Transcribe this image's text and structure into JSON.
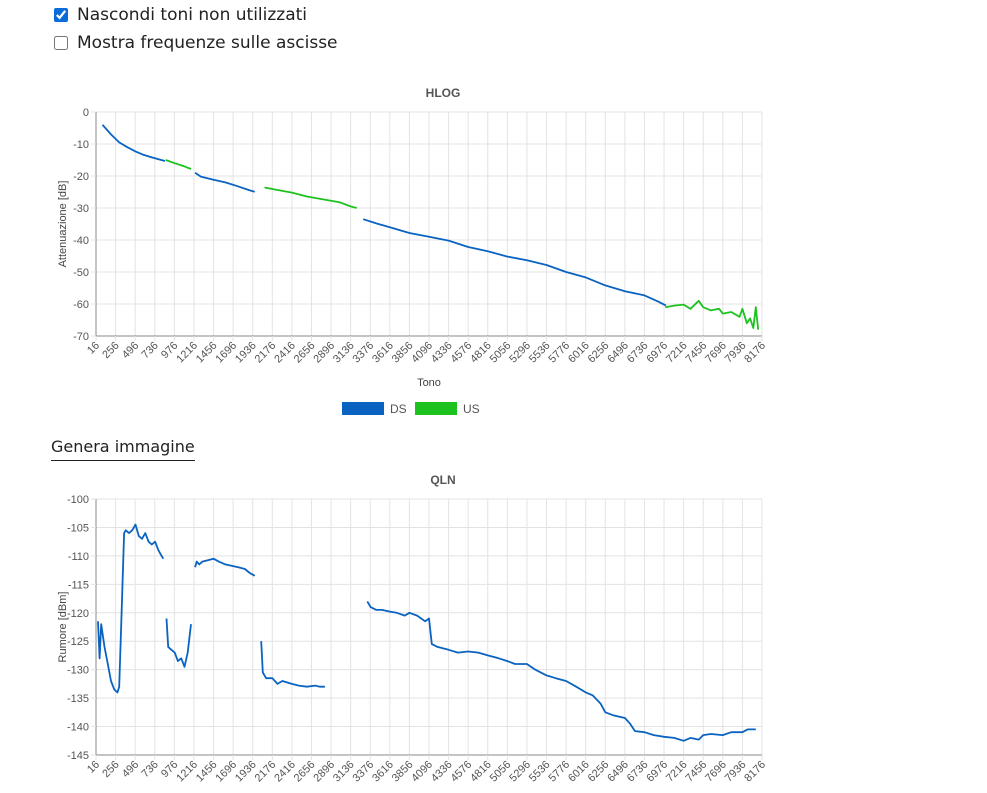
{
  "options": {
    "hide_unused_label": "Nascondi toni non utilizzati",
    "hide_unused_checked": true,
    "show_freq_label": "Mostra frequenze sulle ascisse",
    "show_freq_checked": false
  },
  "generate_image_label": "Genera immagine",
  "colors": {
    "ds": "#0a63c0",
    "us": "#1ec21e",
    "grid": "#e3e3e3",
    "axis": "#888888"
  },
  "chart_data": [
    {
      "type": "line",
      "title": "HLOG",
      "xlabel": "Tono",
      "ylabel": "Attenuazione [dB]",
      "xlim": [
        16,
        8176
      ],
      "ylim": [
        -70,
        0
      ],
      "yticks": [
        0,
        -10,
        -20,
        -30,
        -40,
        -50,
        -60,
        -70
      ],
      "xticks": [
        16,
        256,
        496,
        736,
        976,
        1216,
        1456,
        1696,
        1936,
        2176,
        2416,
        2656,
        2896,
        3136,
        3376,
        3616,
        3856,
        4096,
        4336,
        4576,
        4816,
        5056,
        5296,
        5536,
        5776,
        6016,
        6256,
        6496,
        6736,
        6976,
        7216,
        7456,
        7696,
        7936,
        8176
      ],
      "grid": true,
      "legend": "bottom-center",
      "legend_entries": [
        "DS",
        "US"
      ],
      "series": [
        {
          "name": "DS",
          "color": "#0a63c0",
          "segments": [
            [
              [
                96,
                -4
              ],
              [
                200,
                -7
              ],
              [
                300,
                -9.5
              ],
              [
                400,
                -11
              ],
              [
                500,
                -12.3
              ],
              [
                600,
                -13.4
              ],
              [
                700,
                -14.2
              ],
              [
                860,
                -15.3
              ]
            ],
            [
              [
                1230,
                -19
              ],
              [
                1300,
                -20.2
              ],
              [
                1456,
                -21.2
              ],
              [
                1600,
                -22
              ],
              [
                1750,
                -23.2
              ],
              [
                1900,
                -24.5
              ],
              [
                1960,
                -24.9
              ]
            ],
            [
              [
                3290,
                -33.5
              ],
              [
                3450,
                -34.8
              ],
              [
                3616,
                -36
              ],
              [
                3856,
                -37.8
              ],
              [
                4096,
                -39
              ],
              [
                4336,
                -40.2
              ],
              [
                4576,
                -42.2
              ],
              [
                4816,
                -43.5
              ],
              [
                5056,
                -45.2
              ],
              [
                5296,
                -46.3
              ],
              [
                5536,
                -47.8
              ],
              [
                5776,
                -50
              ],
              [
                6016,
                -51.7
              ],
              [
                6256,
                -54.2
              ],
              [
                6496,
                -56
              ],
              [
                6736,
                -57.3
              ],
              [
                6900,
                -59.2
              ],
              [
                7000,
                -60.5
              ]
            ]
          ]
        },
        {
          "name": "US",
          "color": "#1ec21e",
          "segments": [
            [
              [
                870,
                -15
              ],
              [
                980,
                -16
              ],
              [
                1100,
                -17
              ],
              [
                1180,
                -17.8
              ]
            ],
            [
              [
                2080,
                -23.6
              ],
              [
                2200,
                -24.2
              ],
              [
                2416,
                -25.2
              ],
              [
                2600,
                -26.4
              ],
              [
                2800,
                -27.3
              ],
              [
                3000,
                -28.2
              ],
              [
                3136,
                -29.5
              ],
              [
                3210,
                -30
              ]
            ],
            [
              [
                6990,
                -61
              ],
              [
                7100,
                -60.5
              ],
              [
                7216,
                -60.2
              ],
              [
                7300,
                -61.5
              ],
              [
                7400,
                -59
              ],
              [
                7456,
                -61
              ],
              [
                7550,
                -62
              ],
              [
                7650,
                -61.5
              ],
              [
                7696,
                -63
              ],
              [
                7800,
                -62.5
              ],
              [
                7900,
                -64
              ],
              [
                7936,
                -61.5
              ],
              [
                7990,
                -66
              ],
              [
                8030,
                -64.5
              ],
              [
                8070,
                -67.5
              ],
              [
                8100,
                -61
              ],
              [
                8130,
                -68
              ]
            ]
          ]
        }
      ]
    },
    {
      "type": "line",
      "title": "QLN",
      "xlabel": "",
      "ylabel": "Rumore [dBm]",
      "xlim": [
        16,
        8176
      ],
      "ylim": [
        -145,
        -100
      ],
      "yticks": [
        -100,
        -105,
        -110,
        -115,
        -120,
        -125,
        -130,
        -135,
        -140,
        -145
      ],
      "xticks": [
        16,
        256,
        496,
        736,
        976,
        1216,
        1456,
        1696,
        1936,
        2176,
        2416,
        2656,
        2896,
        3136,
        3376,
        3616,
        3856,
        4096,
        4336,
        4576,
        4816,
        5056,
        5296,
        5536,
        5776,
        6016,
        6256,
        6496,
        6736,
        6976,
        7216,
        7456,
        7696,
        7936,
        8176
      ],
      "grid": true,
      "series": [
        {
          "name": "DS",
          "color": "#0a63c0",
          "segments": [
            [
              [
                40,
                -121.5
              ],
              [
                60,
                -128
              ],
              [
                80,
                -122
              ],
              [
                120,
                -126
              ],
              [
                160,
                -129
              ],
              [
                200,
                -132
              ],
              [
                240,
                -133.5
              ],
              [
                280,
                -134
              ],
              [
                300,
                -133
              ],
              [
                330,
                -120
              ],
              [
                360,
                -106
              ],
              [
                380,
                -105.5
              ],
              [
                420,
                -106
              ],
              [
                460,
                -105.5
              ],
              [
                500,
                -104.5
              ],
              [
                540,
                -106.5
              ],
              [
                580,
                -107
              ],
              [
                620,
                -106
              ],
              [
                660,
                -107.5
              ],
              [
                700,
                -108
              ],
              [
                740,
                -107.5
              ],
              [
                780,
                -109
              ],
              [
                820,
                -110
              ],
              [
                840,
                -110.5
              ]
            ],
            [
              [
                880,
                -121
              ],
              [
                900,
                -126
              ],
              [
                940,
                -126.5
              ],
              [
                980,
                -127
              ],
              [
                1020,
                -128.5
              ],
              [
                1060,
                -128
              ],
              [
                1100,
                -129.5
              ],
              [
                1140,
                -127
              ],
              [
                1180,
                -122
              ]
            ],
            [
              [
                1230,
                -112
              ],
              [
                1250,
                -111
              ],
              [
                1280,
                -111.5
              ],
              [
                1320,
                -111
              ],
              [
                1380,
                -110.8
              ],
              [
                1456,
                -110.5
              ],
              [
                1520,
                -111
              ],
              [
                1600,
                -111.5
              ],
              [
                1696,
                -111.8
              ],
              [
                1760,
                -112
              ],
              [
                1840,
                -112.3
              ],
              [
                1900,
                -113
              ],
              [
                1960,
                -113.5
              ]
            ],
            [
              [
                2040,
                -125
              ],
              [
                2060,
                -130.5
              ],
              [
                2100,
                -131.5
              ],
              [
                2176,
                -131.5
              ],
              [
                2240,
                -132.5
              ],
              [
                2300,
                -132
              ],
              [
                2416,
                -132.5
              ],
              [
                2500,
                -132.8
              ],
              [
                2600,
                -133
              ],
              [
                2700,
                -132.8
              ],
              [
                2760,
                -133
              ],
              [
                2820,
                -133
              ]
            ],
            [
              [
                3340,
                -118
              ],
              [
                3380,
                -119
              ],
              [
                3450,
                -119.5
              ],
              [
                3520,
                -119.5
              ],
              [
                3616,
                -119.8
              ],
              [
                3700,
                -120
              ],
              [
                3800,
                -120.5
              ],
              [
                3856,
                -120
              ],
              [
                3950,
                -120.5
              ],
              [
                4000,
                -121
              ],
              [
                4050,
                -121.5
              ],
              [
                4096,
                -121
              ],
              [
                4130,
                -125.5
              ],
              [
                4200,
                -126
              ],
              [
                4336,
                -126.5
              ],
              [
                4450,
                -127
              ],
              [
                4576,
                -126.8
              ],
              [
                4700,
                -127
              ],
              [
                4816,
                -127.5
              ],
              [
                4950,
                -128
              ],
              [
                5056,
                -128.5
              ],
              [
                5150,
                -129
              ],
              [
                5296,
                -129
              ],
              [
                5400,
                -130
              ],
              [
                5536,
                -131
              ],
              [
                5650,
                -131.5
              ],
              [
                5776,
                -132
              ],
              [
                5900,
                -133
              ],
              [
                6016,
                -134
              ],
              [
                6100,
                -134.5
              ],
              [
                6200,
                -136
              ],
              [
                6256,
                -137.5
              ],
              [
                6350,
                -138
              ],
              [
                6496,
                -138.5
              ],
              [
                6560,
                -139.5
              ],
              [
                6620,
                -140.8
              ],
              [
                6736,
                -141
              ],
              [
                6850,
                -141.5
              ],
              [
                6976,
                -141.8
              ],
              [
                7100,
                -142
              ],
              [
                7216,
                -142.5
              ],
              [
                7300,
                -142
              ],
              [
                7400,
                -142.3
              ],
              [
                7456,
                -141.5
              ],
              [
                7550,
                -141.3
              ],
              [
                7696,
                -141.5
              ],
              [
                7800,
                -141
              ],
              [
                7936,
                -141
              ],
              [
                8000,
                -140.5
              ],
              [
                8100,
                -140.5
              ]
            ]
          ]
        }
      ]
    }
  ]
}
